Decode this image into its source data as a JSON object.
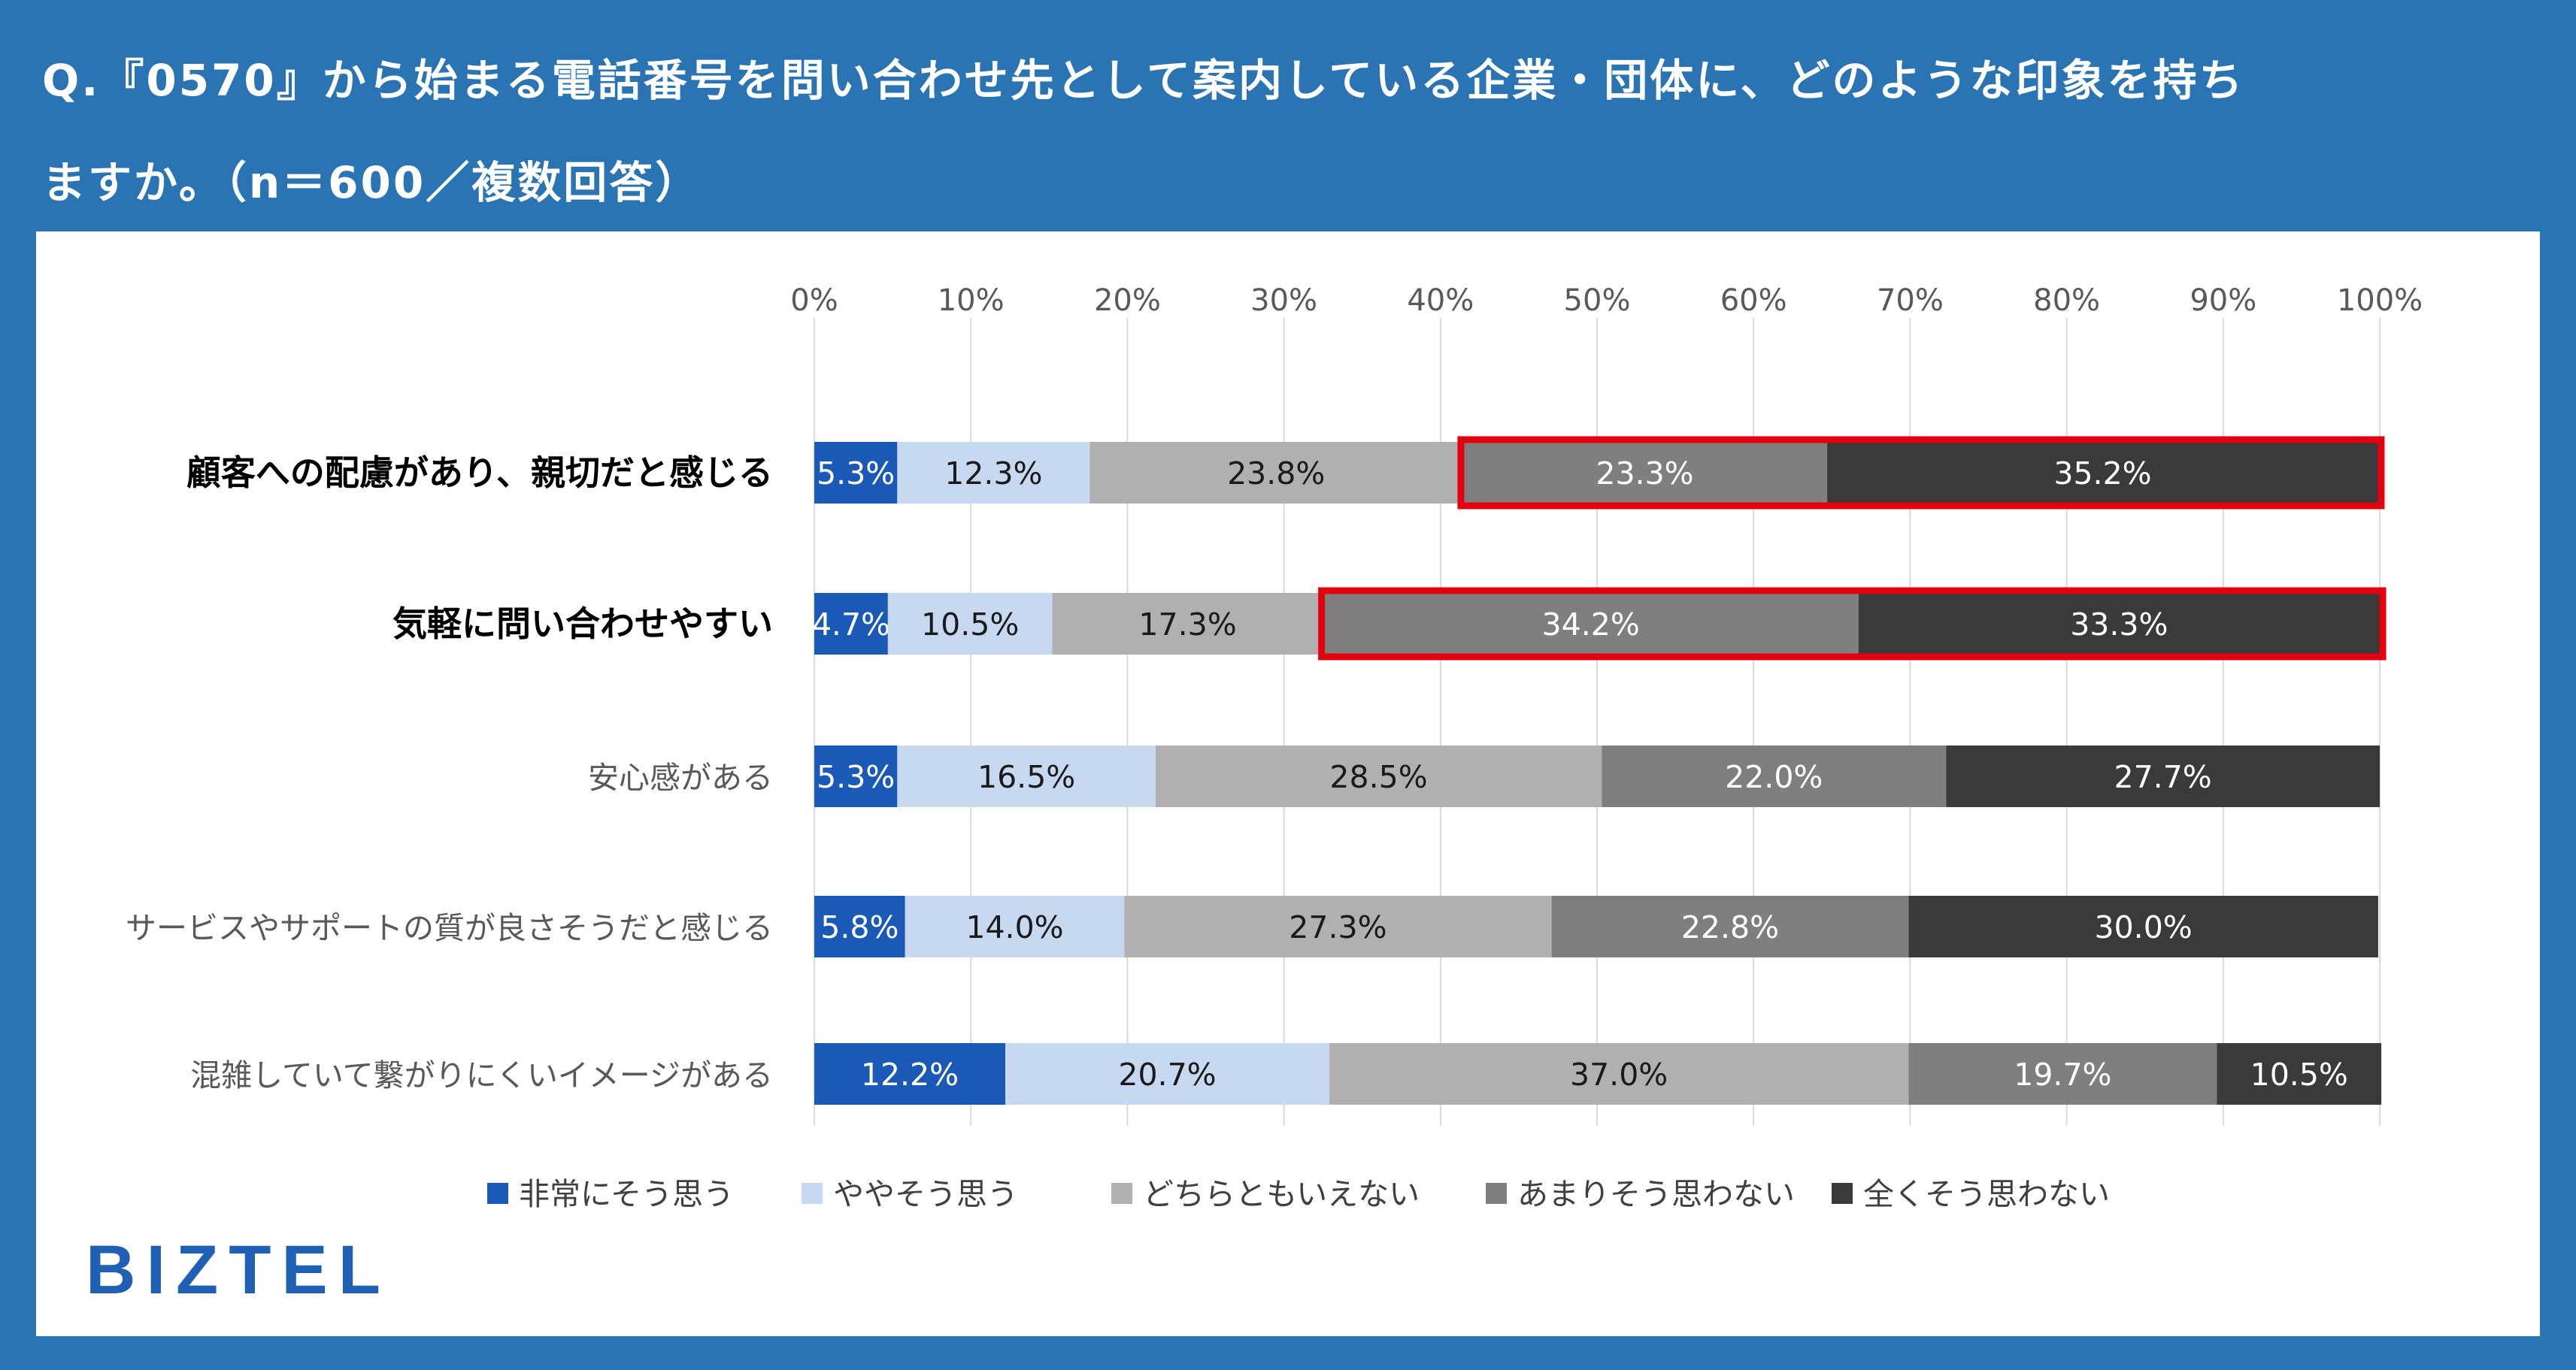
{
  "title": {
    "line1": "Q.『0570』から始まる電話番号を問い合わせ先として案内している企業・団体に、どのような印象を持ち",
    "line2": "ますか。（n＝600／複数回答）"
  },
  "logo": "BIZTEL",
  "colors": {
    "background": "#2b74b3",
    "highlight": "#e3000f",
    "series": [
      "#1a5ab6",
      "#c7d9f1",
      "#b0b0b0",
      "#7f7f7f",
      "#3a3a3a"
    ]
  },
  "chart_data": {
    "type": "bar",
    "orientation": "horizontal",
    "stacked": true,
    "percent_axis": true,
    "title": "",
    "xlabel": "",
    "ylabel": "",
    "xlim": [
      0,
      100
    ],
    "x_ticks": [
      "0%",
      "10%",
      "20%",
      "30%",
      "40%",
      "50%",
      "60%",
      "70%",
      "80%",
      "90%",
      "100%"
    ],
    "grid": true,
    "legend_position": "bottom",
    "categories": [
      "顧客への配慮があり、親切だと感じる",
      "気軽に問い合わせやすい",
      "安心感がある",
      "サービスやサポートの質が良さそうだと感じる",
      "混雑していて繋がりにくいイメージがある"
    ],
    "emphasized_categories": [
      0,
      1
    ],
    "highlighted_ranges": [
      {
        "category_index": 0,
        "series": [
          "あまりそう思わない",
          "全くそう思わない"
        ]
      },
      {
        "category_index": 1,
        "series": [
          "あまりそう思わない",
          "全くそう思わない"
        ]
      }
    ],
    "series": [
      {
        "name": "非常にそう思う",
        "values": [
          5.3,
          4.7,
          5.3,
          5.8,
          12.2
        ],
        "labels": [
          "5.3%",
          "4.7%",
          "5.3%",
          "5.8%",
          "12.2%"
        ]
      },
      {
        "name": "ややそう思う",
        "values": [
          12.3,
          10.5,
          16.5,
          14.0,
          20.7
        ],
        "labels": [
          "12.3%",
          "10.5%",
          "16.5%",
          "14.0%",
          "20.7%"
        ]
      },
      {
        "name": "どちらともいえない",
        "values": [
          23.8,
          17.3,
          28.5,
          27.3,
          37.0
        ],
        "labels": [
          "23.8%",
          "17.3%",
          "28.5%",
          "27.3%",
          "37.0%"
        ]
      },
      {
        "name": "あまりそう思わない",
        "values": [
          23.3,
          34.2,
          22.0,
          22.8,
          19.7
        ],
        "labels": [
          "23.3%",
          "34.2%",
          "22.0%",
          "22.8%",
          "19.7%"
        ]
      },
      {
        "name": "全くそう思わない",
        "values": [
          35.2,
          33.3,
          27.7,
          30.0,
          10.5
        ],
        "labels": [
          "35.2%",
          "33.3%",
          "27.7%",
          "30.0%",
          "10.5%"
        ]
      }
    ]
  }
}
